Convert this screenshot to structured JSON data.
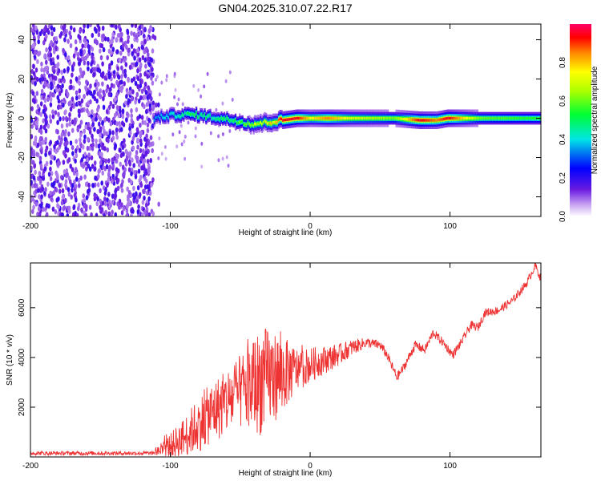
{
  "title": "GN04.2025.310.07.22.R17",
  "colors": {
    "signal_line": "#ee3333",
    "trace_purple": "#6a1be0",
    "axis": "#000000",
    "background": "#ffffff"
  },
  "chart_data": [
    {
      "type": "heatmap",
      "title": "GN04.2025.310.07.22.R17",
      "xlabel": "Height of straight line (km)",
      "ylabel": "Frequency (Hz)",
      "xlim": [
        -200,
        165
      ],
      "ylim": [
        -50,
        48
      ],
      "xticks": [
        -200,
        -100,
        0,
        100
      ],
      "yticks": [
        -40,
        -20,
        0,
        20,
        40
      ],
      "colorbar": {
        "label": "Normalized spectral amplitude",
        "range": [
          0,
          1
        ],
        "ticks": [
          "0.0",
          "0.2",
          "0.4",
          "0.6",
          "0.8"
        ]
      },
      "noise_region": [
        -200,
        -112
      ],
      "ridge": {
        "description_points": [
          {
            "x": -112,
            "freq": 0,
            "amp": 0.35
          },
          {
            "x": -100,
            "freq": 1.5,
            "amp": 0.42
          },
          {
            "x": -85,
            "freq": 2,
            "amp": 0.55
          },
          {
            "x": -70,
            "freq": 0.5,
            "amp": 0.5
          },
          {
            "x": -55,
            "freq": -1,
            "amp": 0.55
          },
          {
            "x": -42,
            "freq": -3,
            "amp": 0.7
          },
          {
            "x": -30,
            "freq": -2,
            "amp": 0.75
          },
          {
            "x": -20,
            "freq": -1,
            "amp": 0.95
          },
          {
            "x": -10,
            "freq": 0,
            "amp": 0.95
          },
          {
            "x": 0,
            "freq": 0,
            "amp": 0.75
          },
          {
            "x": 12,
            "freq": 0,
            "amp": 0.85
          },
          {
            "x": 30,
            "freq": 0,
            "amp": 0.7
          },
          {
            "x": 60,
            "freq": 0,
            "amp": 0.6
          },
          {
            "x": 78,
            "freq": -1,
            "amp": 0.95
          },
          {
            "x": 90,
            "freq": -1,
            "amp": 0.85
          },
          {
            "x": 98,
            "freq": 0,
            "amp": 0.95
          },
          {
            "x": 120,
            "freq": 0,
            "amp": 0.6
          },
          {
            "x": 150,
            "freq": 0,
            "amp": 0.55
          },
          {
            "x": 165,
            "freq": 0,
            "amp": 0.55
          }
        ]
      }
    },
    {
      "type": "line",
      "xlabel": "Height of straight line (km)",
      "ylabel": "SNR (10 * v/v)",
      "xlim": [
        -200,
        165
      ],
      "ylim": [
        0,
        7800
      ],
      "xticks": [
        -200,
        -100,
        0,
        100
      ],
      "yticks": [
        2000,
        4000,
        6000
      ],
      "series": [
        {
          "name": "SNR",
          "points": [
            {
              "x": -200,
              "y": 150
            },
            {
              "x": -150,
              "y": 150
            },
            {
              "x": -112,
              "y": 150
            },
            {
              "x": -100,
              "y": 450
            },
            {
              "x": -90,
              "y": 800
            },
            {
              "x": -80,
              "y": 1300
            },
            {
              "x": -70,
              "y": 1800
            },
            {
              "x": -60,
              "y": 2200
            },
            {
              "x": -50,
              "y": 2600
            },
            {
              "x": -40,
              "y": 2900
            },
            {
              "x": -30,
              "y": 3200
            },
            {
              "x": -20,
              "y": 3300
            },
            {
              "x": -10,
              "y": 3500
            },
            {
              "x": 0,
              "y": 3700
            },
            {
              "x": 10,
              "y": 3900
            },
            {
              "x": 20,
              "y": 4100
            },
            {
              "x": 30,
              "y": 4400
            },
            {
              "x": 40,
              "y": 4600
            },
            {
              "x": 50,
              "y": 4500
            },
            {
              "x": 55,
              "y": 4100
            },
            {
              "x": 62,
              "y": 3200
            },
            {
              "x": 67,
              "y": 3600
            },
            {
              "x": 75,
              "y": 4500
            },
            {
              "x": 82,
              "y": 4300
            },
            {
              "x": 88,
              "y": 5000
            },
            {
              "x": 95,
              "y": 4600
            },
            {
              "x": 102,
              "y": 4100
            },
            {
              "x": 108,
              "y": 4600
            },
            {
              "x": 115,
              "y": 5300
            },
            {
              "x": 120,
              "y": 5200
            },
            {
              "x": 125,
              "y": 5800
            },
            {
              "x": 135,
              "y": 5900
            },
            {
              "x": 145,
              "y": 6300
            },
            {
              "x": 155,
              "y": 7000
            },
            {
              "x": 161,
              "y": 7700
            },
            {
              "x": 165,
              "y": 7150
            }
          ],
          "noise_amplitude": [
            {
              "x": -200,
              "a": 80
            },
            {
              "x": -112,
              "a": 80
            },
            {
              "x": -100,
              "a": 500
            },
            {
              "x": -80,
              "a": 1100
            },
            {
              "x": -50,
              "a": 1500
            },
            {
              "x": -35,
              "a": 2200
            },
            {
              "x": -20,
              "a": 1600
            },
            {
              "x": -10,
              "a": 900
            },
            {
              "x": 0,
              "a": 700
            },
            {
              "x": 20,
              "a": 450
            },
            {
              "x": 40,
              "a": 200
            },
            {
              "x": 80,
              "a": 180
            },
            {
              "x": 165,
              "a": 160
            }
          ]
        }
      ]
    }
  ]
}
